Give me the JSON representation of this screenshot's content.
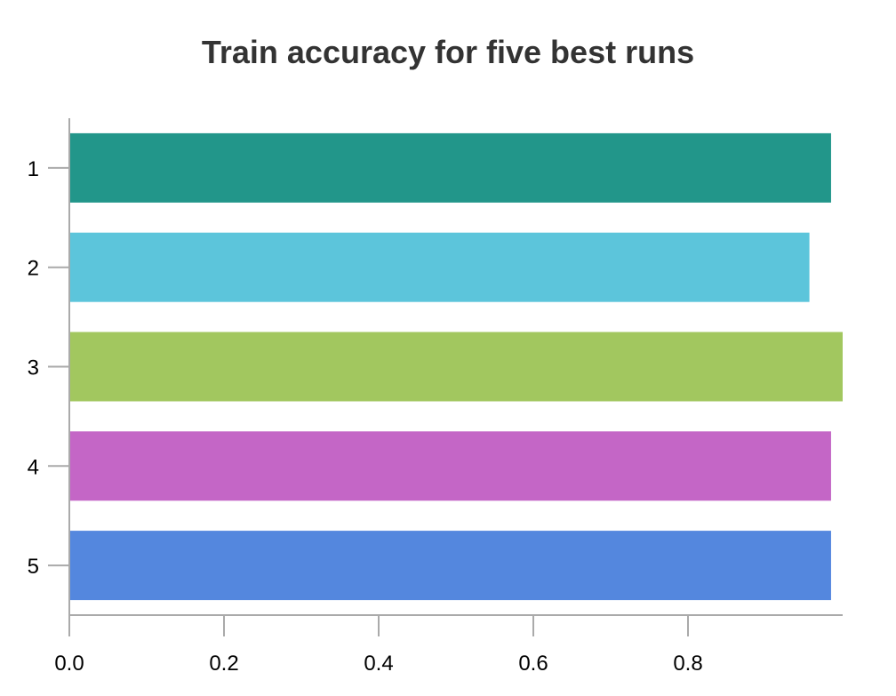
{
  "chart_data": {
    "type": "bar",
    "orientation": "horizontal",
    "title": "Train accuracy for five best runs",
    "xlabel": "",
    "ylabel": "",
    "categories": [
      "1",
      "2",
      "3",
      "4",
      "5"
    ],
    "values": [
      0.985,
      0.957,
      1.0,
      0.985,
      0.985
    ],
    "colors": [
      "#22968A",
      "#5CC5DB",
      "#A2C75F",
      "#C466C6",
      "#5487DE"
    ],
    "xlim": [
      0,
      1.0
    ],
    "xticks": [
      "0.0",
      "0.2",
      "0.4",
      "0.6",
      "0.8"
    ],
    "xtick_values": [
      0,
      0.2,
      0.4,
      0.6,
      0.8
    ],
    "grid": false,
    "legend": "none"
  }
}
